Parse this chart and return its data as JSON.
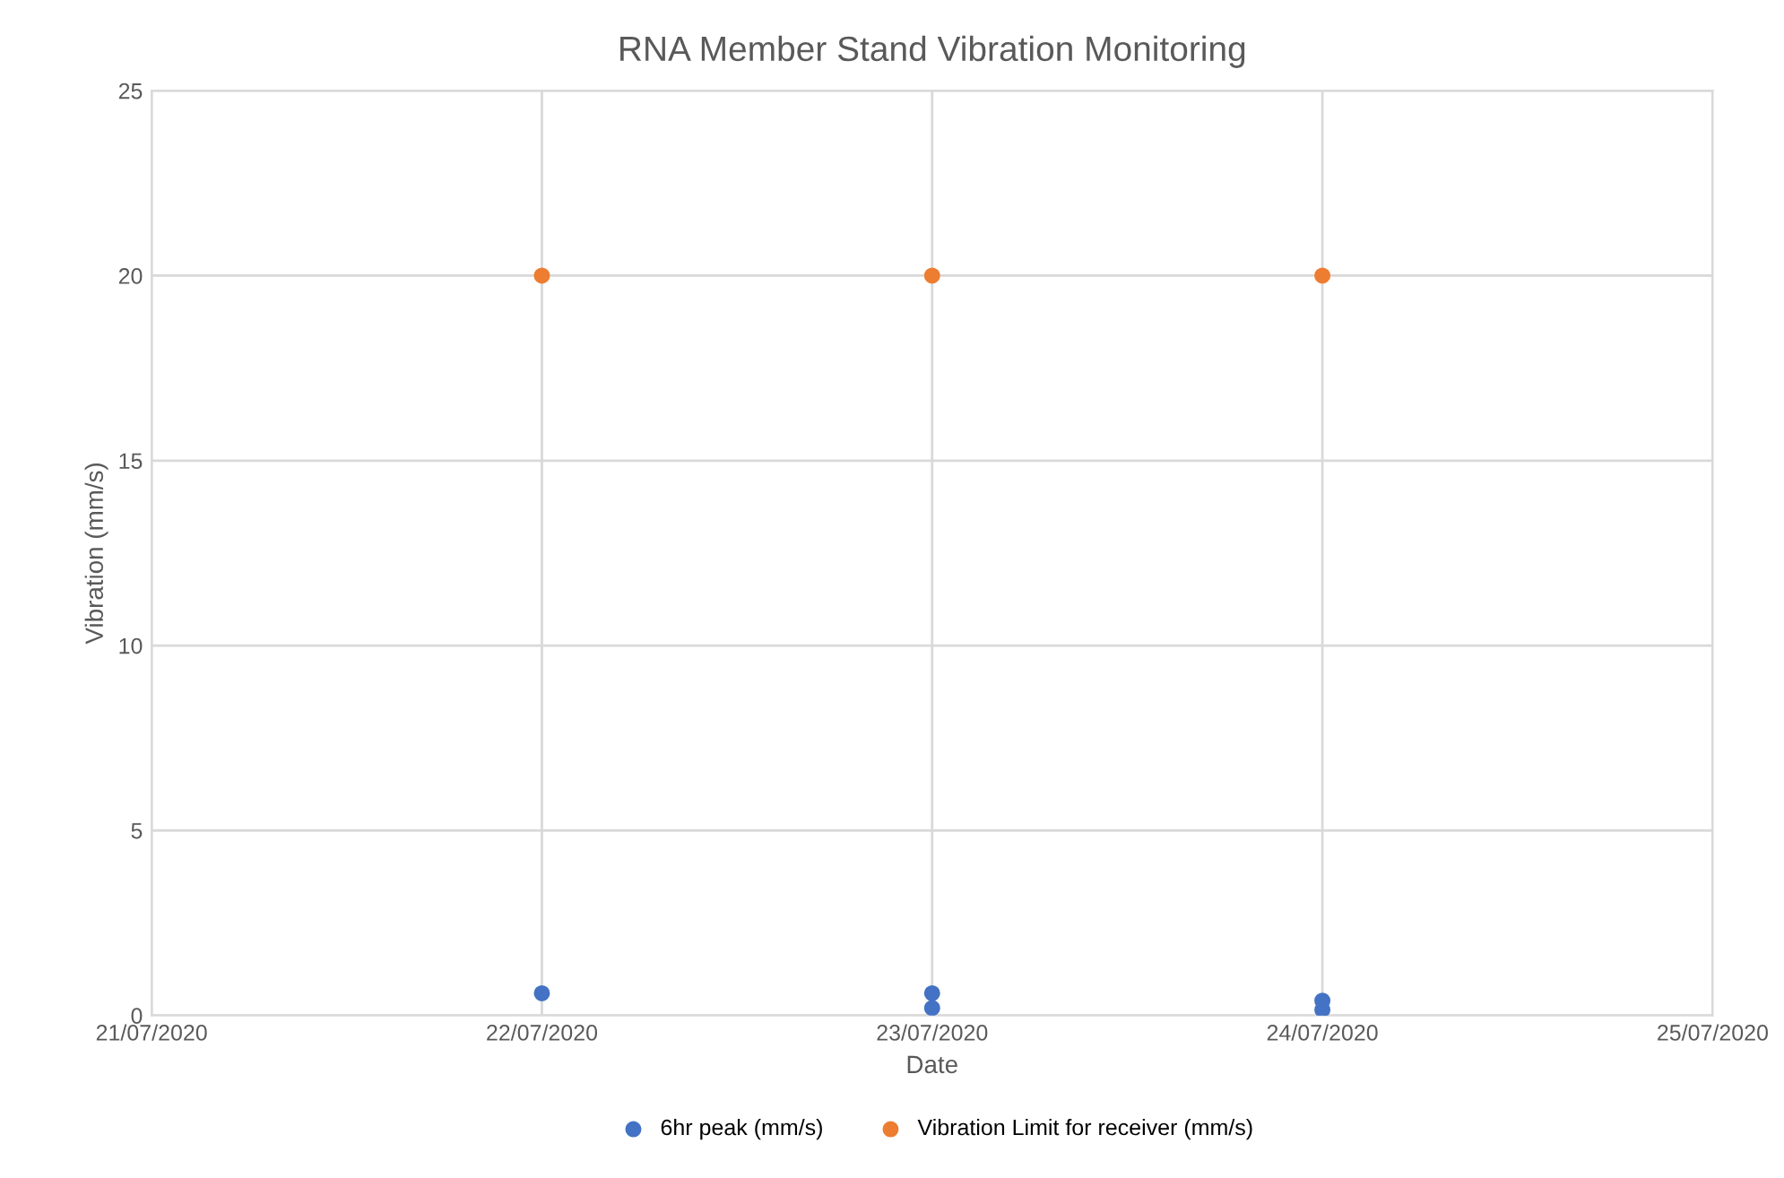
{
  "chart_data": {
    "type": "scatter",
    "title": "RNA Member Stand Vibration Monitoring",
    "xlabel": "Date",
    "ylabel": "Vibration (mm/s)",
    "series": [
      {
        "name": "6hr peak (mm/s)",
        "color": "#4472c4",
        "x": [
          "2020-07-22",
          "2020-07-23",
          "2020-07-23",
          "2020-07-24",
          "2020-07-24"
        ],
        "values": [
          0.6,
          0.6,
          0.2,
          0.4,
          0.15
        ]
      },
      {
        "name": "Vibration Limit for receiver (mm/s)",
        "color": "#ed7d31",
        "x": [
          "2020-07-22",
          "2020-07-23",
          "2020-07-24"
        ],
        "values": [
          20,
          20,
          20
        ]
      }
    ],
    "xlim": [
      "2020-07-21",
      "2020-07-25"
    ],
    "xticks": [
      {
        "value": "2020-07-21",
        "label": "21/07/2020"
      },
      {
        "value": "2020-07-22",
        "label": "22/07/2020"
      },
      {
        "value": "2020-07-23",
        "label": "23/07/2020"
      },
      {
        "value": "2020-07-24",
        "label": "24/07/2020"
      },
      {
        "value": "2020-07-25",
        "label": "25/07/2020"
      }
    ],
    "ylim": [
      0,
      25
    ],
    "yticks": [
      0,
      5,
      10,
      15,
      20,
      25
    ],
    "grid": true,
    "legend": "bottom",
    "marker": "circle"
  }
}
